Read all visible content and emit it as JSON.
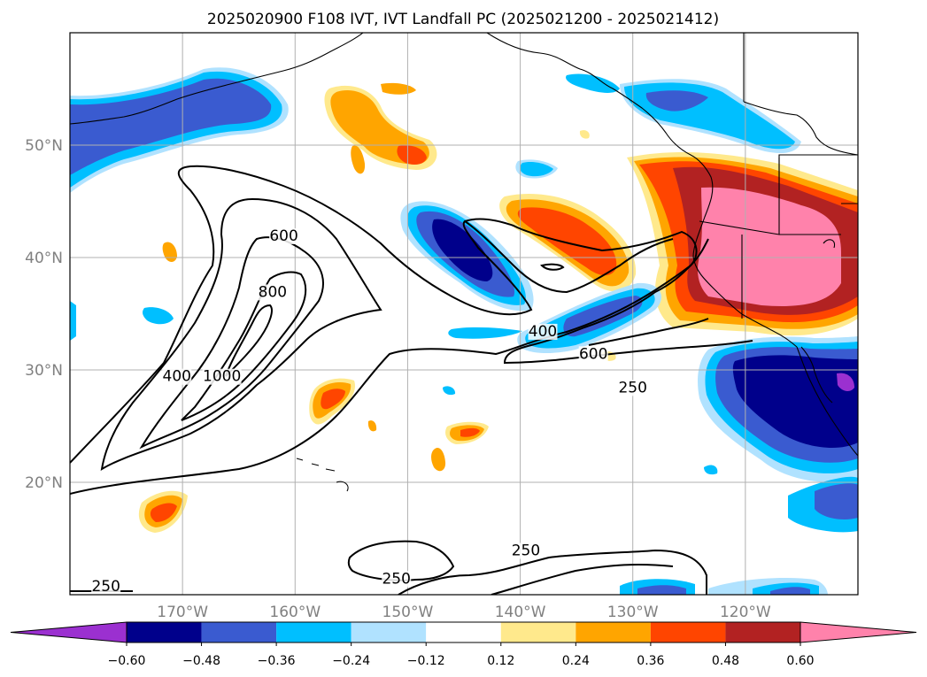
{
  "chart_data": {
    "type": "contour",
    "title": "2025020900 F108 IVT, IVT Landfall PC (2025021200 - 2025021412)",
    "map": {
      "lon_range": [
        -180,
        -110
      ],
      "lat_range": [
        10,
        60
      ],
      "grid": true,
      "lat_ticks": [
        {
          "value": 50,
          "label": "50°N"
        },
        {
          "value": 40,
          "label": "40°N"
        },
        {
          "value": 30,
          "label": "30°N"
        },
        {
          "value": 20,
          "label": "20°N"
        }
      ],
      "lon_ticks": [
        {
          "value": -170,
          "label": "170°W"
        },
        {
          "value": -160,
          "label": "160°W"
        },
        {
          "value": -150,
          "label": "150°W"
        },
        {
          "value": -140,
          "label": "140°W"
        },
        {
          "value": -130,
          "label": "130°W"
        },
        {
          "value": -120,
          "label": "120°W"
        }
      ]
    },
    "ivt_contours": {
      "levels": [
        250,
        400,
        600,
        800,
        1000
      ],
      "labels": [
        {
          "text": "600",
          "lon": -161.0,
          "lat": 41.5
        },
        {
          "text": "800",
          "lon": -162.0,
          "lat": 36.5
        },
        {
          "text": "400",
          "lon": -170.5,
          "lat": 29.0
        },
        {
          "text": "1000",
          "lon": -166.5,
          "lat": 29.0
        },
        {
          "text": "400",
          "lon": -138.0,
          "lat": 33.0
        },
        {
          "text": "600",
          "lon": -133.5,
          "lat": 31.0
        },
        {
          "text": "250",
          "lon": -130.0,
          "lat": 28.0
        },
        {
          "text": "250",
          "lon": -139.5,
          "lat": 13.5
        },
        {
          "text": "250",
          "lon": -151.0,
          "lat": 11.0
        },
        {
          "text": "250",
          "lon": -176.8,
          "lat": 10.3
        }
      ]
    },
    "colorbar": {
      "ticks": [
        "−0.60",
        "−0.48",
        "−0.36",
        "−0.24",
        "−0.12",
        "0.12",
        "0.24",
        "0.36",
        "0.48",
        "0.60"
      ],
      "colors": [
        "#9b30d0",
        "#00008b",
        "#3a5bd0",
        "#00bfff",
        "#b0e2ff",
        "#ffffff",
        "#ffe98c",
        "#ffa500",
        "#ff4500",
        "#b22222",
        "#ff82ab"
      ],
      "extend": "both"
    },
    "pc_regions": [
      {
        "level": 0.6,
        "lon": -124.0,
        "lat": 40.0
      },
      {
        "level": -0.6,
        "lon": -150.0,
        "lat": 40.0
      },
      {
        "level": -0.6,
        "lon": -118.0,
        "lat": 27.0
      },
      {
        "level": 0.36,
        "lon": -139.0,
        "lat": 41.0
      },
      {
        "level": -0.36,
        "lon": -168.0,
        "lat": 52.0
      }
    ]
  },
  "colors": {
    "fill_pos_light": "#ffe98c",
    "fill_pos_med": "#ffa500",
    "fill_pos_strong": "#ff4500",
    "fill_pos_darker": "#b22222",
    "fill_pos_max": "#ff82ab",
    "fill_neg_light": "#b0e2ff",
    "fill_neg_med": "#00bfff",
    "fill_neg_strong": "#3a5bd0",
    "fill_neg_darker": "#00008b",
    "fill_neg_max": "#9b30d0"
  }
}
